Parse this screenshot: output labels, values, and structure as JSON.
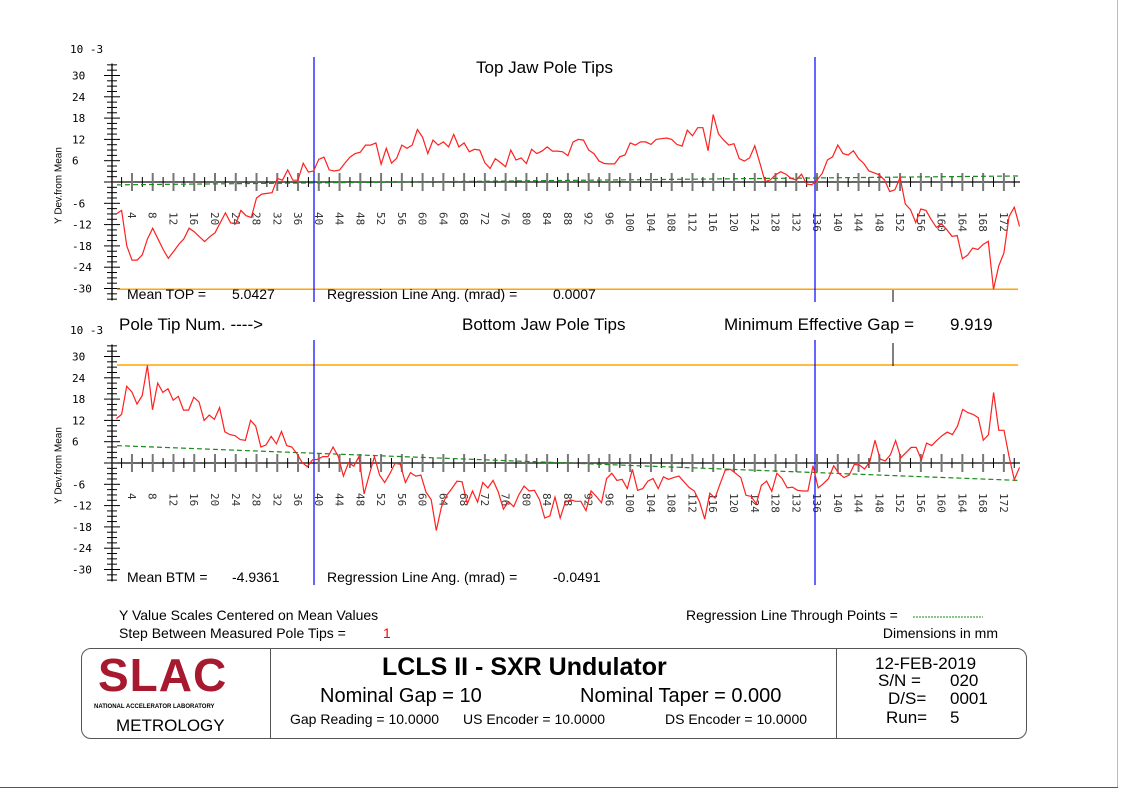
{
  "chart_data": [
    {
      "type": "line",
      "title": "Top Jaw Pole Tips",
      "ylabel": "Y Dev.from Mean",
      "yscale_exponent": "10 -3",
      "xlabel": "Pole Tip Num. ---->",
      "ylim": [
        -30,
        30
      ],
      "xlim": [
        1,
        175
      ],
      "yticks": [
        30,
        24,
        18,
        12,
        6,
        -6,
        -12,
        -18,
        -24,
        -30
      ],
      "xticks": [
        4,
        8,
        12,
        16,
        20,
        24,
        28,
        32,
        36,
        40,
        44,
        48,
        52,
        56,
        60,
        64,
        68,
        72,
        76,
        80,
        84,
        88,
        92,
        96,
        100,
        104,
        108,
        112,
        116,
        120,
        124,
        128,
        132,
        136,
        140,
        144,
        148,
        152,
        156,
        160,
        164,
        168,
        172
      ],
      "markers_x": [
        39,
        136
      ],
      "min_gap_marker_x": 150,
      "limit_line_y": -30.2,
      "regression": {
        "start": -0.8,
        "end": 1.7
      },
      "values": [
        -9,
        -8,
        -18,
        -22,
        -22,
        -20.5,
        -16,
        -13,
        -16,
        -19,
        -21.5,
        -19.6,
        -17.6,
        -16,
        -13,
        -14,
        -15.4,
        -16.8,
        -15.4,
        -14.3,
        -11.5,
        -8.7,
        -11.5,
        -11.8,
        -8,
        -9.5,
        -10,
        -4.5,
        -3.4,
        -3.2,
        -3,
        1,
        0.5,
        3.4,
        0.5,
        0.5,
        5.3,
        2.8,
        3.1,
        6.4,
        7,
        3.4,
        3.1,
        3.4,
        5.3,
        7,
        8,
        8.4,
        10.4,
        10.4,
        11,
        5,
        9.5,
        5.3,
        6.7,
        10.4,
        9.5,
        10.4,
        14.8,
        12.6,
        8,
        11.8,
        10.4,
        11.3,
        9.9,
        13.4,
        9.9,
        11,
        8.5,
        9.2,
        9,
        5.4,
        3.8,
        6.6,
        5.5,
        4.3,
        9,
        6.2,
        6.8,
        5.2,
        9.2,
        8,
        8.7,
        9.9,
        8.7,
        8.7,
        8.5,
        7.4,
        11.3,
        12,
        11.8,
        9,
        8,
        5.9,
        5.2,
        5.1,
        5.1,
        7.1,
        7.6,
        11,
        10.4,
        11.3,
        11.3,
        10.6,
        12,
        12.2,
        12.4,
        12,
        10.6,
        10.1,
        14.6,
        13,
        15.3,
        15.3,
        8.8,
        19,
        13.6,
        11.8,
        10.4,
        10.8,
        6.6,
        5.9,
        6.8,
        10.2,
        5.2,
        0.1,
        0.6,
        2,
        2.9,
        2.2,
        1,
        0.6,
        2.2,
        -0.6,
        -0.8,
        0.6,
        2.4,
        6.2,
        7.1,
        10.4,
        8,
        7.6,
        8.8,
        6.6,
        5.2,
        3.1,
        2.6,
        2,
        0.6,
        -2.7,
        -2.2,
        1.3,
        -6.2,
        -7.8,
        -11.4,
        -7.6,
        -8,
        -10.6,
        -12.8,
        -11.8,
        -13.4,
        -15.3,
        -15.1,
        -21.6,
        -20.6,
        -18.6,
        -19,
        -17.6,
        -16.7,
        -30.2,
        -23.7,
        -20,
        -9.7,
        -7.1,
        -12.5
      ],
      "mean_label": "Mean TOP =",
      "mean_value": "5.0427",
      "regression_label": "Regression Line Ang. (mrad) =",
      "regression_value": "0.0007"
    },
    {
      "type": "line",
      "title": "Bottom Jaw Pole Tips",
      "ylabel": "Y Dev.from Mean",
      "yscale_exponent": "10 -3",
      "ylim": [
        -30,
        30
      ],
      "xlim": [
        1,
        175
      ],
      "yticks": [
        30,
        24,
        18,
        12,
        6,
        -6,
        -12,
        -18,
        -24,
        -30
      ],
      "xticks": [
        4,
        8,
        12,
        16,
        20,
        24,
        28,
        32,
        36,
        40,
        44,
        48,
        52,
        56,
        60,
        64,
        68,
        72,
        76,
        80,
        84,
        88,
        92,
        96,
        100,
        104,
        108,
        112,
        116,
        120,
        124,
        128,
        132,
        136,
        140,
        144,
        148,
        152,
        156,
        160,
        164,
        168,
        172
      ],
      "markers_x": [
        39,
        136
      ],
      "min_gap_marker_x": 150,
      "limit_line_y": 27.6,
      "regression": {
        "start": 4.9,
        "end": -4.9
      },
      "values": [
        12.5,
        13.7,
        21.6,
        20,
        16.6,
        19,
        27.5,
        15,
        22.5,
        19.9,
        20.9,
        17.7,
        18.8,
        14.9,
        14.9,
        18.5,
        17.2,
        12,
        13.5,
        12.3,
        15.6,
        8.8,
        8,
        7.7,
        6.6,
        6.4,
        12,
        10.4,
        4.5,
        5.1,
        7.5,
        5.4,
        8.9,
        4.9,
        4.5,
        2.6,
        0.1,
        -1,
        0.9,
        1,
        1.8,
        1.8,
        4.5,
        1.8,
        -3.7,
        0.1,
        -0.9,
        1.8,
        -8.7,
        -3.4,
        1.8,
        -3.4,
        -5.5,
        -3,
        -0.1,
        -0.3,
        -5.5,
        -2.7,
        -3.7,
        -3.4,
        -8.2,
        -10.3,
        -19,
        -12.3,
        -9.1,
        -7.2,
        -5.1,
        -5.3,
        -11.5,
        -7.9,
        -11,
        -5.5,
        -7,
        -4.9,
        -8.2,
        -13,
        -10.9,
        -12.3,
        -8.9,
        -6.5,
        -7.9,
        -7.7,
        -10.3,
        -15.5,
        -14.9,
        -9.6,
        -15.5,
        -11,
        -10.4,
        -10.8,
        -10.8,
        -13.4,
        -7.9,
        -9.4,
        -11.2,
        -4.4,
        -2.9,
        -4.9,
        -4.6,
        -7.2,
        -1.8,
        -7.7,
        -7.2,
        -5.1,
        -4.4,
        -7.2,
        -3.9,
        -4.6,
        -4.1,
        -3.7,
        -5.3,
        -6.9,
        -7.9,
        -10.9,
        -15.8,
        -8.5,
        -9.9,
        -5.8,
        -2,
        -1.8,
        -2.9,
        -4.1,
        -9.1,
        -9.4,
        -11.5,
        -6.3,
        -5.1,
        -8,
        -2.9,
        -4.4,
        -7,
        -6.8,
        -7.7,
        -7.9,
        -7.9,
        -0.8,
        -7,
        -5.8,
        -4.4,
        -0.8,
        -2.9,
        -4.1,
        -3.4,
        -0.4,
        -0.6,
        -1.7,
        0.4,
        6.4,
        1.1,
        0.6,
        2.3,
        6.3,
        1.5,
        2.9,
        4.4,
        4.4,
        0.9,
        5.6,
        4.9,
        6.4,
        7.7,
        8.7,
        8,
        10.4,
        15.1,
        14.2,
        13.7,
        12.8,
        6.4,
        8,
        19.9,
        9.2,
        9.2,
        1.8,
        -4.7,
        -1.2
      ],
      "mean_label": "Mean BTM =",
      "mean_value": "-4.9361",
      "regression_label": "Regression Line Ang. (mrad) =",
      "regression_value": "-0.0491"
    }
  ],
  "min_gap": {
    "label": "Minimum Effective Gap =",
    "value": "9.919"
  },
  "notes": {
    "scales": "Y Value Scales Centered on Mean Values",
    "step_label": "Step Between Measured Pole Tips =",
    "step_value": "1",
    "regression_legend": "Regression Line Through Points =",
    "dimensions": "Dimensions in mm"
  },
  "title_block": {
    "logo_text": "SLAC",
    "logo_sub": "NATIONAL ACCELERATOR LABORATORY",
    "dept": "METROLOGY",
    "title": "LCLS II - SXR Undulator",
    "nominal_gap": "Nominal Gap = 10",
    "nominal_taper": "Nominal Taper = 0.000",
    "gap_reading": "Gap Reading = 10.0000",
    "us_encoder": "US Encoder  = 10.0000",
    "ds_encoder": "DS Encoder  = 10.0000",
    "date": "12-FEB-2019",
    "sn_label": "S/N =",
    "sn_value": "020",
    "ds_label": "D/S=",
    "ds_value": "0001",
    "run_label": "Run=",
    "run_value": "5"
  },
  "colors": {
    "data": "#ff2020",
    "marker": "#0000ff",
    "limit": "#ffa500",
    "regression": "#1a8a1a",
    "logo": "#a6192e"
  }
}
